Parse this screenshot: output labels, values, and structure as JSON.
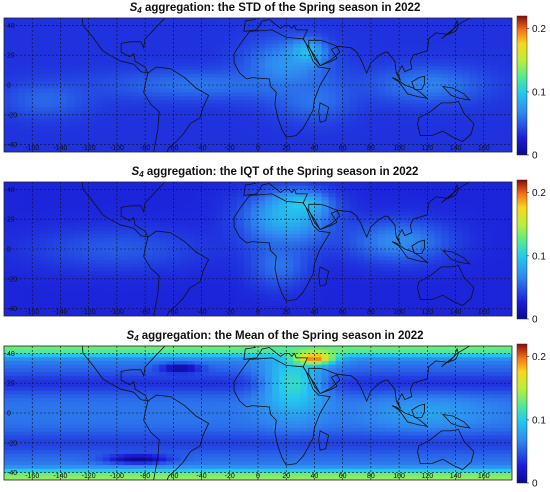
{
  "chart_data": [
    {
      "type": "heatmap",
      "title_prefix": "S",
      "title_sub": "4",
      "title_rest": " aggregation: the STD of the Spring season in 2022",
      "x_ticks": [
        "-160",
        "-140",
        "-120",
        "-100",
        "-80",
        "-60",
        "-40",
        "-20",
        "0",
        "20",
        "40",
        "60",
        "80",
        "100",
        "120",
        "140",
        "160"
      ],
      "x_tick_values": [
        -160,
        -140,
        -120,
        -100,
        -80,
        -60,
        -40,
        -20,
        0,
        20,
        40,
        60,
        80,
        100,
        120,
        140,
        160
      ],
      "y_ticks": [
        "40",
        "20",
        "0",
        "-20",
        "-40"
      ],
      "y_tick_values": [
        40,
        20,
        0,
        -20,
        -40
      ],
      "xlim": [
        -180,
        180
      ],
      "ylim": [
        -45,
        45
      ],
      "colorbar_ticks": [
        "0.2",
        "0.1",
        "0"
      ],
      "colorbar_values": [
        0.2,
        0.1,
        0
      ],
      "colorbar_range": [
        0,
        0.22
      ],
      "grid": true,
      "field": {
        "background": 0.035,
        "regions": [
          {
            "lon": 20,
            "lat": 12,
            "rlon": 28,
            "rlat": 18,
            "value": 0.075
          },
          {
            "lon": 35,
            "lat": 22,
            "rlon": 12,
            "rlat": 8,
            "value": 0.095
          },
          {
            "lon": -40,
            "lat": 0,
            "rlon": 70,
            "rlat": 10,
            "value": 0.06
          },
          {
            "lon": 120,
            "lat": 0,
            "rlon": 40,
            "rlat": 12,
            "value": 0.065
          },
          {
            "lon": -150,
            "lat": -10,
            "rlon": 30,
            "rlat": 12,
            "value": 0.055
          },
          {
            "lon": 40,
            "lat": -10,
            "rlon": 25,
            "rlat": 14,
            "value": 0.06
          }
        ]
      }
    },
    {
      "type": "heatmap",
      "title_prefix": "S",
      "title_sub": "4",
      "title_rest": " aggregation: the IQT of the Spring season in 2022",
      "x_ticks": [
        "-160",
        "-140",
        "-120",
        "-100",
        "-80",
        "-60",
        "-40",
        "-20",
        "0",
        "20",
        "40",
        "60",
        "80",
        "100",
        "120",
        "140",
        "160"
      ],
      "x_tick_values": [
        -160,
        -140,
        -120,
        -100,
        -80,
        -60,
        -40,
        -20,
        0,
        20,
        40,
        60,
        80,
        100,
        120,
        140,
        160
      ],
      "y_ticks": [
        "40",
        "20",
        "0",
        "-20",
        "-40"
      ],
      "y_tick_values": [
        40,
        20,
        0,
        -20,
        -40
      ],
      "xlim": [
        -180,
        180
      ],
      "ylim": [
        -45,
        45
      ],
      "colorbar_ticks": [
        "0.2",
        "0.1",
        "0"
      ],
      "colorbar_values": [
        0.2,
        0.1,
        0
      ],
      "colorbar_range": [
        0,
        0.22
      ],
      "grid": true,
      "field": {
        "background": 0.03,
        "regions": [
          {
            "lon": 20,
            "lat": 20,
            "rlon": 30,
            "rlat": 18,
            "value": 0.09
          },
          {
            "lon": 30,
            "lat": 30,
            "rlon": 18,
            "rlat": 8,
            "value": 0.1
          },
          {
            "lon": 100,
            "lat": 5,
            "rlon": 35,
            "rlat": 14,
            "value": 0.07
          },
          {
            "lon": 15,
            "lat": -10,
            "rlon": 20,
            "rlat": 16,
            "value": 0.06
          },
          {
            "lon": -100,
            "lat": 0,
            "rlon": 60,
            "rlat": 14,
            "value": 0.05
          }
        ]
      }
    },
    {
      "type": "heatmap",
      "title_prefix": "S",
      "title_sub": "4",
      "title_rest": " aggregation: the Mean of the Spring season in 2022",
      "x_ticks": [
        "-160",
        "-140",
        "-120",
        "-100",
        "-80",
        "-60",
        "-40",
        "-20",
        "0",
        "20",
        "40",
        "60",
        "80",
        "100",
        "120",
        "140",
        "160"
      ],
      "x_tick_values": [
        -160,
        -140,
        -120,
        -100,
        -80,
        -60,
        -40,
        -20,
        0,
        20,
        40,
        60,
        80,
        100,
        120,
        140,
        160
      ],
      "y_ticks": [
        "40",
        "20",
        "0",
        "-20",
        "-40"
      ],
      "y_tick_values": [
        40,
        20,
        0,
        -20,
        -40
      ],
      "xlim": [
        -180,
        180
      ],
      "ylim": [
        -45,
        45
      ],
      "colorbar_ticks": [
        "0.2",
        "0.1",
        "0"
      ],
      "colorbar_values": [
        0.2,
        0.1,
        0
      ],
      "colorbar_range": [
        0,
        0.22
      ],
      "grid": true,
      "field": {
        "background": 0.06,
        "bands": [
          {
            "lat": 43,
            "width": 5,
            "value": 0.13
          },
          {
            "lat": -43,
            "width": 5,
            "value": 0.14
          },
          {
            "lat": 20,
            "width": 8,
            "value": 0.035
          },
          {
            "lat": -20,
            "width": 8,
            "value": 0.04
          }
        ],
        "regions": [
          {
            "lon": 25,
            "lat": 20,
            "rlon": 22,
            "rlat": 22,
            "value": 0.11
          },
          {
            "lon": 40,
            "lat": 37,
            "rlon": 14,
            "rlat": 4,
            "value": 0.2
          },
          {
            "lon": -55,
            "lat": 30,
            "rlon": 14,
            "rlat": 3,
            "value": 0.0
          },
          {
            "lon": -85,
            "lat": -31,
            "rlon": 22,
            "rlat": 3,
            "value": 0.0
          },
          {
            "lon": 120,
            "lat": 0,
            "rlon": 40,
            "rlat": 10,
            "value": 0.08
          }
        ]
      }
    }
  ]
}
